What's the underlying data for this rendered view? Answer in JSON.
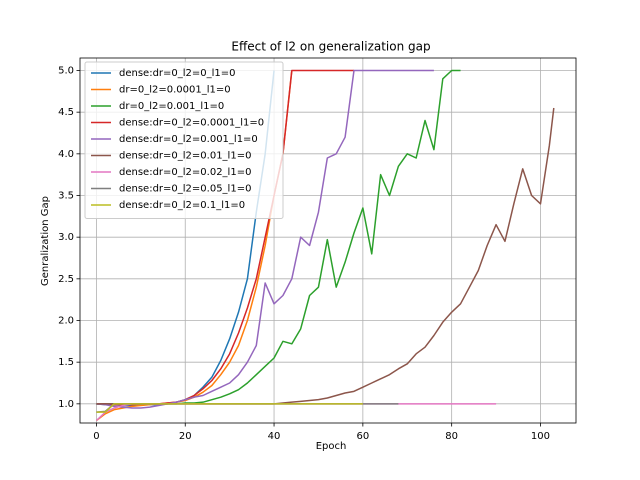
{
  "chart_data": {
    "type": "line",
    "title": "Effect of l2 on generalization gap",
    "x_label": "Epoch",
    "y_label": "Genralization Gap",
    "x": [
      0,
      2,
      4,
      6,
      8,
      10,
      12,
      14,
      16,
      18,
      20,
      22,
      24,
      26,
      28,
      30,
      32,
      34,
      36,
      38,
      40,
      42,
      44,
      46,
      48,
      50,
      52,
      54,
      56,
      58,
      60,
      62,
      64,
      66,
      68,
      70,
      72,
      74,
      76,
      78,
      80,
      82,
      84,
      86,
      88,
      90,
      92,
      94,
      96,
      98,
      100,
      102,
      103
    ],
    "series": [
      {
        "name": "dense:dr=0_l2=0_l1=0",
        "color": "#1f77b4",
        "values": [
          1.0,
          0.99,
          0.99,
          0.98,
          0.98,
          0.99,
          0.99,
          0.99,
          1.0,
          1.02,
          1.05,
          1.1,
          1.2,
          1.32,
          1.52,
          1.78,
          2.1,
          2.5,
          3.3,
          4.0,
          5.0,
          null,
          null,
          null,
          null,
          null,
          null,
          null,
          null,
          null,
          null,
          null,
          null,
          null,
          null,
          null,
          null,
          null,
          null,
          null,
          null,
          null,
          null,
          null,
          null,
          null,
          null,
          null,
          null,
          null,
          null,
          null,
          null
        ]
      },
      {
        "name": "dr=0_l2=0.0001_l1=0",
        "color": "#ff7f0e",
        "values": [
          0.8,
          0.88,
          0.93,
          0.95,
          0.97,
          0.98,
          0.99,
          1.0,
          1.01,
          1.02,
          1.04,
          1.08,
          1.14,
          1.22,
          1.35,
          1.5,
          1.7,
          2.0,
          2.4,
          2.9,
          3.5,
          4.0,
          5.0,
          null,
          null,
          null,
          null,
          null,
          null,
          null,
          null,
          null,
          null,
          null,
          null,
          null,
          null,
          null,
          null,
          null,
          null,
          null,
          null,
          null,
          null,
          null,
          null,
          null,
          null,
          null,
          null,
          null,
          null
        ]
      },
      {
        "name": "dr=0_l2=0.001_l1=0",
        "color": "#2ca02c",
        "values": [
          1.0,
          1.0,
          1.0,
          1.0,
          1.0,
          1.0,
          1.0,
          1.0,
          1.0,
          1.0,
          1.01,
          1.01,
          1.02,
          1.05,
          1.08,
          1.12,
          1.17,
          1.25,
          1.35,
          1.45,
          1.55,
          1.75,
          1.72,
          1.9,
          2.3,
          2.4,
          2.97,
          2.4,
          2.7,
          3.05,
          3.35,
          2.8,
          3.75,
          3.5,
          3.85,
          4.0,
          3.95,
          4.4,
          4.05,
          4.9,
          5.0,
          5.0,
          null,
          null,
          null,
          null,
          null,
          null,
          null,
          null,
          null,
          null,
          null
        ]
      },
      {
        "name": "dense:dr=0_l2=0.0001_l1=0",
        "color": "#d62728",
        "values": [
          1.0,
          1.0,
          0.99,
          0.99,
          0.99,
          1.0,
          1.0,
          1.0,
          1.01,
          1.02,
          1.05,
          1.1,
          1.18,
          1.28,
          1.42,
          1.6,
          1.85,
          2.15,
          2.5,
          3.0,
          3.5,
          4.0,
          5.0,
          5.0,
          5.0,
          5.0,
          5.0,
          5.0,
          5.0,
          5.0,
          null,
          null,
          null,
          null,
          null,
          null,
          null,
          null,
          null,
          null,
          null,
          null,
          null,
          null,
          null,
          null,
          null,
          null,
          null,
          null,
          null,
          null,
          null
        ]
      },
      {
        "name": "dense:dr=0_l2=0.001_l1=0",
        "color": "#9467bd",
        "values": [
          1.0,
          0.99,
          0.97,
          0.96,
          0.95,
          0.95,
          0.96,
          0.98,
          1.0,
          1.02,
          1.05,
          1.08,
          1.1,
          1.15,
          1.2,
          1.25,
          1.35,
          1.5,
          1.7,
          2.45,
          2.2,
          2.3,
          2.5,
          3.0,
          2.9,
          3.3,
          3.95,
          4.0,
          4.2,
          5.0,
          5.0,
          5.0,
          5.0,
          5.0,
          5.0,
          5.0,
          5.0,
          5.0,
          5.0,
          null,
          null,
          null,
          null,
          null,
          null,
          null,
          null,
          null,
          null,
          null,
          null,
          null,
          null
        ]
      },
      {
        "name": "dense:dr=0_l2=0.01_l1=0",
        "color": "#8c564b",
        "values": [
          1.0,
          1.0,
          1.0,
          1.0,
          1.0,
          1.0,
          1.0,
          1.0,
          1.0,
          1.0,
          1.0,
          1.0,
          1.0,
          1.0,
          1.0,
          1.0,
          1.0,
          1.0,
          1.0,
          1.0,
          1.0,
          1.01,
          1.02,
          1.03,
          1.04,
          1.05,
          1.07,
          1.1,
          1.13,
          1.15,
          1.2,
          1.25,
          1.3,
          1.35,
          1.42,
          1.48,
          1.6,
          1.68,
          1.82,
          1.98,
          2.1,
          2.2,
          2.4,
          2.6,
          2.9,
          3.15,
          2.95,
          3.4,
          3.82,
          3.5,
          3.4,
          4.1,
          4.55
        ]
      },
      {
        "name": "dense:dr=0_l2=0.02_l1=0",
        "color": "#e377c2",
        "values": [
          0.8,
          0.9,
          0.95,
          0.98,
          1.0,
          1.0,
          1.0,
          1.0,
          1.0,
          1.0,
          1.0,
          1.0,
          1.0,
          1.0,
          1.0,
          1.0,
          1.0,
          1.0,
          1.0,
          1.0,
          1.0,
          1.0,
          1.0,
          1.0,
          1.0,
          1.0,
          1.0,
          1.0,
          1.0,
          1.0,
          1.0,
          1.0,
          1.0,
          1.0,
          1.0,
          1.0,
          1.0,
          1.0,
          1.0,
          1.0,
          1.0,
          1.0,
          1.0,
          1.0,
          1.0,
          1.0,
          null,
          null,
          null,
          null,
          null,
          null,
          null
        ]
      },
      {
        "name": "dense:dr=0_l2=0.05_l1=0",
        "color": "#7f7f7f",
        "values": [
          0.9,
          0.91,
          1.0,
          1.0,
          1.0,
          1.0,
          1.0,
          1.0,
          1.0,
          1.0,
          1.0,
          1.0,
          1.0,
          1.0,
          1.0,
          1.0,
          1.0,
          1.0,
          1.0,
          1.0,
          1.0,
          1.0,
          1.0,
          1.0,
          1.0,
          1.0,
          1.0,
          1.0,
          1.0,
          1.0,
          1.0,
          1.0,
          1.0,
          1.0,
          1.0,
          null,
          null,
          null,
          null,
          null,
          null,
          null,
          null,
          null,
          null,
          null,
          null,
          null,
          null,
          null,
          null,
          null,
          null
        ]
      },
      {
        "name": "dense:dr=0_l2=0.1_l1=0",
        "color": "#bcbd22",
        "values": [
          0.9,
          0.9,
          1.0,
          1.0,
          1.0,
          1.0,
          1.0,
          1.0,
          1.0,
          1.0,
          1.0,
          1.0,
          1.0,
          1.0,
          1.0,
          1.0,
          1.0,
          1.0,
          1.0,
          1.0,
          1.0,
          1.0,
          1.0,
          1.0,
          1.0,
          1.0,
          1.0,
          1.0,
          1.0,
          1.0,
          1.0,
          null,
          null,
          null,
          null,
          null,
          null,
          null,
          null,
          null,
          null,
          null,
          null,
          null,
          null,
          null,
          null,
          null,
          null,
          null,
          null,
          null,
          null
        ]
      }
    ],
    "xlim": [
      -3.7,
      108
    ],
    "xticks": [
      0,
      20,
      40,
      60,
      80,
      100
    ],
    "ylim": [
      0.77,
      5.15
    ],
    "yticks": [
      {
        "value": 1,
        "label": "1.0"
      },
      1.5,
      {
        "value": 2,
        "label": "2.0"
      },
      2.5,
      {
        "value": 3,
        "label": "3.0"
      },
      3.5,
      {
        "value": 4,
        "label": "4.0"
      },
      4.5,
      {
        "value": 5,
        "label": "5.0"
      }
    ],
    "grid": true,
    "legend": "upper-left"
  }
}
